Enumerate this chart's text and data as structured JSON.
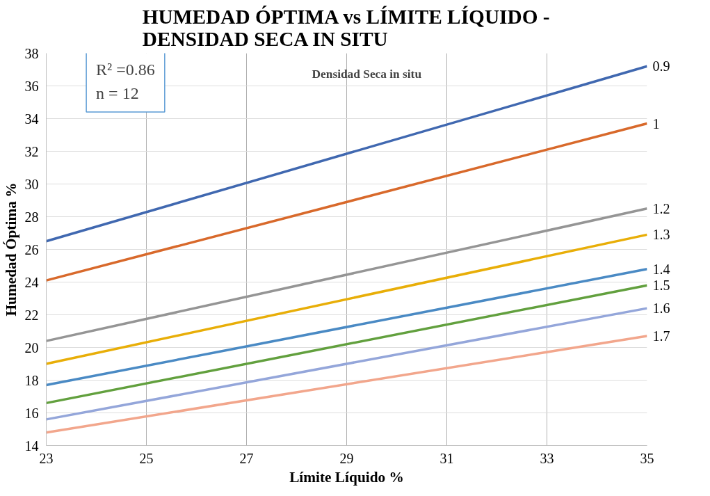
{
  "chart_data": {
    "type": "line",
    "title": "HUMEDAD ÓPTIMA vs LÍMITE LÍQUIDO -\nDENSIDAD SECA IN SITU",
    "xlabel": "Límite Líquido %",
    "ylabel": "Humedad Óptima %",
    "x": [
      23,
      35
    ],
    "series": [
      {
        "name": "0.9",
        "color": "#4068b0",
        "values": [
          26.5,
          37.2
        ]
      },
      {
        "name": "1",
        "color": "#d8692b",
        "values": [
          24.1,
          33.7
        ]
      },
      {
        "name": "1.2",
        "color": "#959595",
        "values": [
          20.4,
          28.5
        ]
      },
      {
        "name": "1.3",
        "color": "#e8ae08",
        "values": [
          19.0,
          26.9
        ]
      },
      {
        "name": "1.4",
        "color": "#4a8ac4",
        "values": [
          17.7,
          24.8
        ]
      },
      {
        "name": "1.5",
        "color": "#62a03e",
        "values": [
          16.6,
          23.8
        ]
      },
      {
        "name": "1.6",
        "color": "#94a6da",
        "values": [
          15.6,
          22.4
        ]
      },
      {
        "name": "1.7",
        "color": "#f2a68c",
        "values": [
          14.8,
          20.7
        ]
      }
    ],
    "xlim": [
      23,
      35
    ],
    "xticks": [
      23,
      25,
      27,
      29,
      31,
      33,
      35
    ],
    "ylim": [
      14,
      38
    ],
    "yticks": [
      14,
      16,
      18,
      20,
      22,
      24,
      26,
      28,
      30,
      32,
      34,
      36,
      38
    ],
    "annotations": [
      "R² =0.86\nn = 12",
      "Densidad Seca in situ"
    ],
    "grid": true,
    "marker": "none",
    "line_style": "solid"
  }
}
